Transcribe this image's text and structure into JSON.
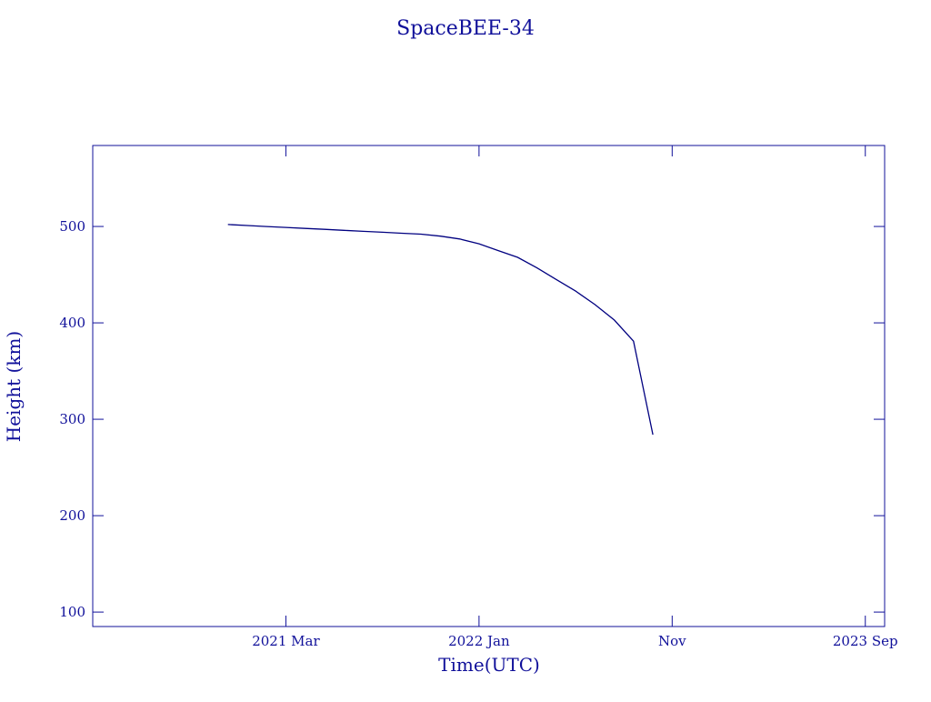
{
  "chart_data": {
    "type": "line",
    "title": "SpaceBEE-34",
    "x_label": "Time(UTC)",
    "y_label": "Height (km)",
    "color": "#000080",
    "x": [
      "2020-12",
      "2021-01",
      "2021-02",
      "2021-03",
      "2021-04",
      "2021-05",
      "2021-06",
      "2021-07",
      "2021-08",
      "2021-09",
      "2021-10",
      "2021-11",
      "2021-12",
      "2022-01",
      "2022-02",
      "2022-03",
      "2022-04",
      "2022-05",
      "2022-06",
      "2022-07",
      "2022-08",
      "2022-09",
      "2022-10"
    ],
    "values": [
      502,
      501,
      500,
      499,
      498,
      497,
      496,
      495,
      494,
      493,
      492,
      490,
      487,
      482,
      475,
      468,
      457,
      445,
      433,
      419,
      403,
      381,
      284
    ],
    "xlim": [
      "2020-05",
      "2023-10"
    ],
    "xticks": [
      {
        "value": "2021-03",
        "label": "2021 Mar"
      },
      {
        "value": "2022-01",
        "label": "2022 Jan"
      },
      {
        "value": "2022-11",
        "label": "Nov"
      },
      {
        "value": "2023-09",
        "label": "2023 Sep"
      }
    ],
    "ylim": [
      85,
      584
    ],
    "yticks": [
      100,
      200,
      300,
      400,
      500
    ]
  }
}
